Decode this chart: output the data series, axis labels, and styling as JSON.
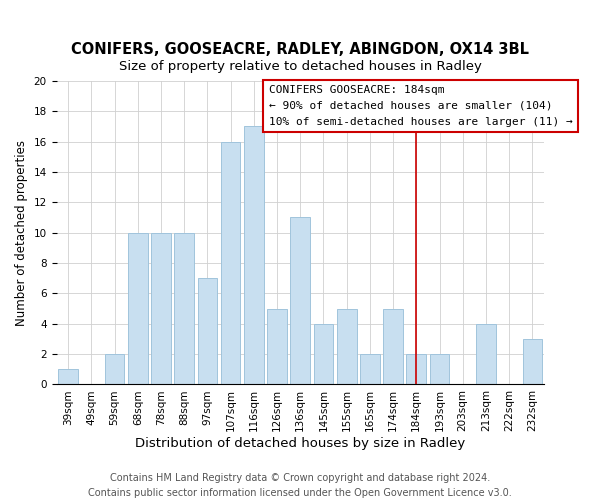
{
  "title": "CONIFERS, GOOSEACRE, RADLEY, ABINGDON, OX14 3BL",
  "subtitle": "Size of property relative to detached houses in Radley",
  "xlabel": "Distribution of detached houses by size in Radley",
  "ylabel": "Number of detached properties",
  "bar_labels": [
    "39sqm",
    "49sqm",
    "59sqm",
    "68sqm",
    "78sqm",
    "88sqm",
    "97sqm",
    "107sqm",
    "116sqm",
    "126sqm",
    "136sqm",
    "145sqm",
    "155sqm",
    "165sqm",
    "174sqm",
    "184sqm",
    "193sqm",
    "203sqm",
    "213sqm",
    "222sqm",
    "232sqm"
  ],
  "bar_values": [
    1,
    0,
    2,
    10,
    10,
    10,
    7,
    16,
    17,
    5,
    11,
    4,
    5,
    2,
    5,
    2,
    2,
    0,
    4,
    0,
    3
  ],
  "bar_color": "#c8dff0",
  "bar_edge_color": "#a0c4dc",
  "highlight_index": 15,
  "highlight_line_color": "#cc0000",
  "ylim": [
    0,
    20
  ],
  "yticks": [
    0,
    2,
    4,
    6,
    8,
    10,
    12,
    14,
    16,
    18,
    20
  ],
  "annotation_title": "CONIFERS GOOSEACRE: 184sqm",
  "annotation_line1": "← 90% of detached houses are smaller (104)",
  "annotation_line2": "10% of semi-detached houses are larger (11) →",
  "annotation_box_color": "#ffffff",
  "annotation_border_color": "#cc0000",
  "footnote1": "Contains HM Land Registry data © Crown copyright and database right 2024.",
  "footnote2": "Contains public sector information licensed under the Open Government Licence v3.0.",
  "title_fontsize": 10.5,
  "subtitle_fontsize": 9.5,
  "xlabel_fontsize": 9.5,
  "ylabel_fontsize": 8.5,
  "tick_fontsize": 7.5,
  "annotation_fontsize": 8,
  "footnote_fontsize": 7
}
